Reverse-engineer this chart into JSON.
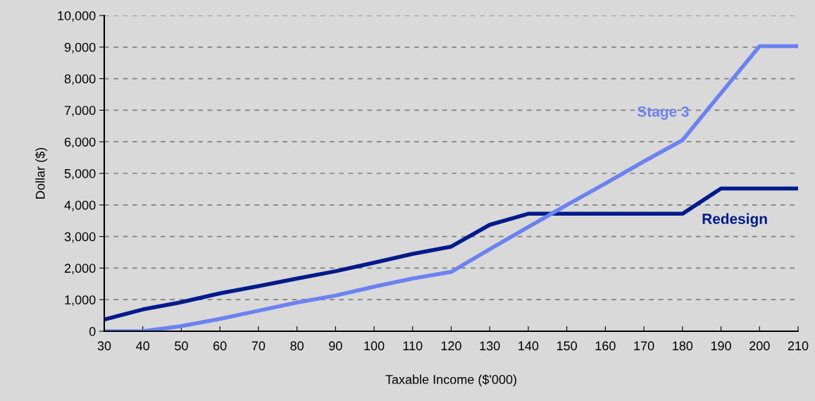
{
  "chart_data": {
    "type": "line",
    "xlabel": "Taxable Income ($'000)",
    "ylabel": "Dollar ($)",
    "x": [
      30,
      40,
      50,
      60,
      70,
      80,
      90,
      100,
      110,
      120,
      130,
      140,
      150,
      160,
      170,
      180,
      190,
      200,
      210
    ],
    "series": [
      {
        "name": "Redesign",
        "color": "#001a8c",
        "values": [
          370,
          690,
          920,
          1200,
          1430,
          1670,
          1900,
          2170,
          2450,
          2680,
          3370,
          3720,
          3720,
          3720,
          3720,
          3720,
          4520,
          4520,
          4520
        ]
      },
      {
        "name": "Stage 3",
        "color": "#6b82f0",
        "values": [
          0,
          0,
          160,
          390,
          650,
          910,
          1130,
          1410,
          1670,
          1880,
          2600,
          3300,
          4000,
          4680,
          5380,
          6050,
          7540,
          9030,
          9030
        ]
      }
    ],
    "xlim": [
      30,
      210
    ],
    "xticks": [
      30,
      40,
      50,
      60,
      70,
      80,
      90,
      100,
      110,
      120,
      130,
      140,
      150,
      160,
      170,
      180,
      190,
      200,
      210
    ],
    "ylim": [
      0,
      10000
    ],
    "yticks": [
      {
        "value": 0,
        "label": "0"
      },
      {
        "value": 1000,
        "label": "1,000"
      },
      {
        "value": 2000,
        "label": "2,000"
      },
      {
        "value": 3000,
        "label": "3,000"
      },
      {
        "value": 4000,
        "label": "4,000"
      },
      {
        "value": 5000,
        "label": "5,000"
      },
      {
        "value": 6000,
        "label": "6,000"
      },
      {
        "value": 7000,
        "label": "7,000"
      },
      {
        "value": 8000,
        "label": "8,000"
      },
      {
        "value": 9000,
        "label": "9,000"
      },
      {
        "value": 10000,
        "label": "10,000"
      }
    ],
    "grid": "y",
    "legend": false,
    "marker": "none",
    "line_style": "solid"
  }
}
